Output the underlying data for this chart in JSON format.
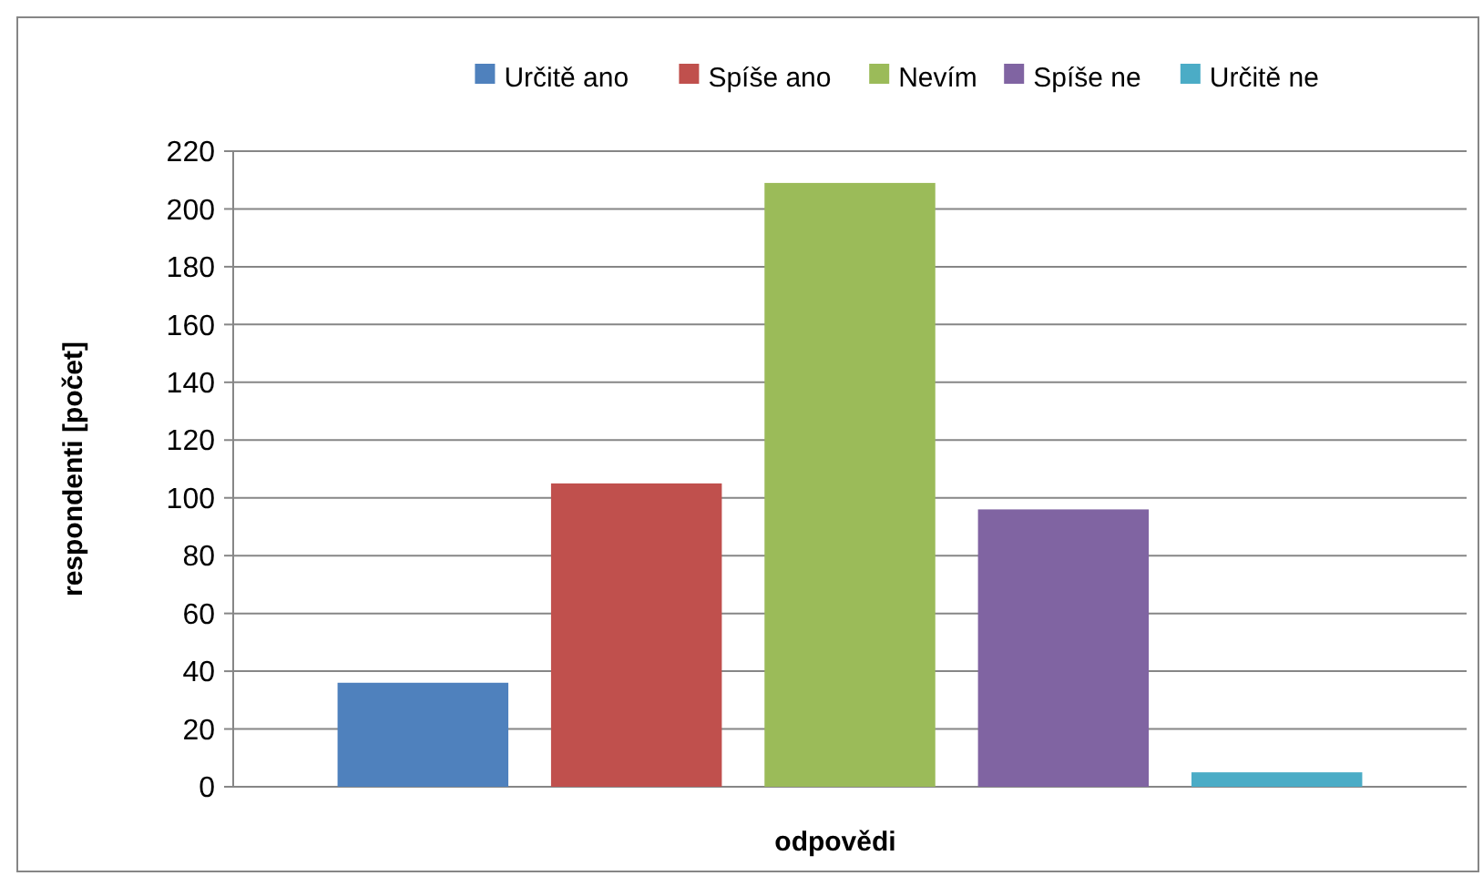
{
  "chart_data": {
    "type": "bar",
    "xlabel": "odpovědi",
    "ylabel": "respondenti [počet]",
    "categories": [
      null
    ],
    "series": [
      {
        "name": "Určitě ano",
        "color": "#4f81bd",
        "values": [
          36
        ]
      },
      {
        "name": "Spíše ano",
        "color": "#c0504d",
        "values": [
          105
        ]
      },
      {
        "name": "Nevím",
        "color": "#9bbb59",
        "values": [
          209
        ]
      },
      {
        "name": "Spíše ne",
        "color": "#8064a2",
        "values": [
          96
        ]
      },
      {
        "name": "Určitě ne",
        "color": "#4bacc6",
        "values": [
          5
        ]
      }
    ],
    "ylim": [
      0,
      220
    ],
    "yticks": [
      0,
      20,
      40,
      60,
      80,
      100,
      120,
      140,
      160,
      180,
      200,
      220
    ],
    "grid": "y",
    "legend": "top"
  }
}
